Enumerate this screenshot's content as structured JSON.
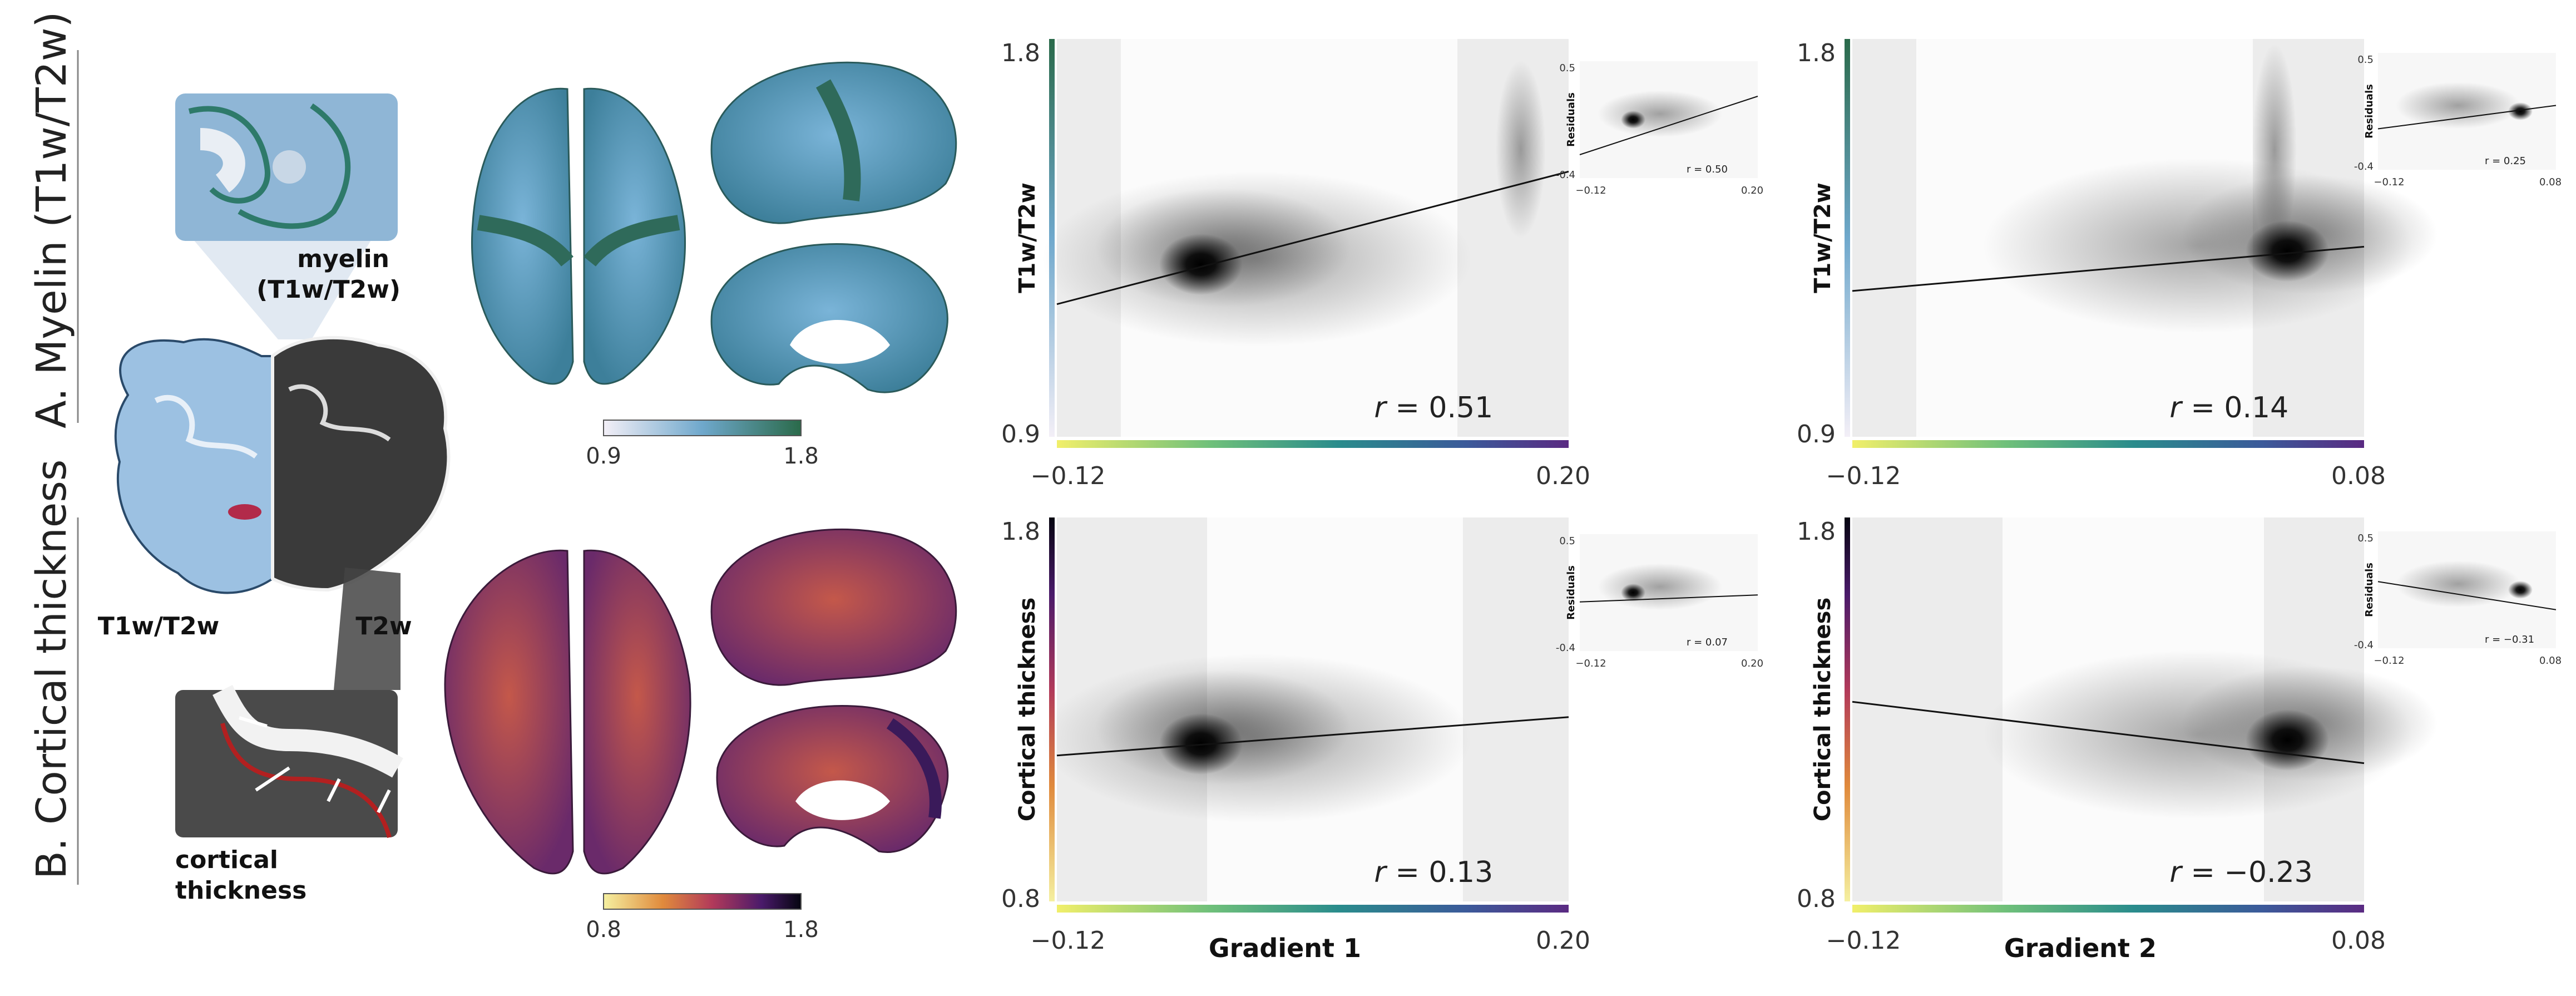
{
  "sections": {
    "a": {
      "letter": "A",
      "title": "Myelin (T1w/T2w)"
    },
    "b": {
      "letter": "B",
      "title": "Cortical thickness"
    }
  },
  "schematic": {
    "myelin_label_1": "myelin",
    "myelin_label_2": "(T1w/T2w)",
    "t1w_label": "T1w/T2w",
    "t2w_label": "T2w",
    "thickness_label_1": "cortical",
    "thickness_label_2": "thickness"
  },
  "colorbars": {
    "myelin": {
      "min": "0.9",
      "max": "1.8",
      "colors": [
        "#f3eff7",
        "#6fa8cc",
        "#2a6a4a"
      ]
    },
    "thickness": {
      "min": "0.8",
      "max": "1.8",
      "colors": [
        "#f5f0a0",
        "#e08a3c",
        "#b23a5a",
        "#4a1a6a",
        "#050510"
      ]
    }
  },
  "colors": {
    "gradient_bar": [
      "#f1ef6a",
      "#6fc07a",
      "#2a8c8c",
      "#3b5a9a",
      "#5a2a82"
    ],
    "myelin_brain": "#5f9fc8",
    "myelin_brain_dark": "#2f6a5a",
    "thickness_brain": "#b24a52",
    "thickness_brain_dark": "#4a2a78"
  },
  "chart_data": [
    {
      "type": "scatter",
      "panel": "A-gradient1",
      "xlabel": "",
      "ylabel": "T1w/T2w",
      "xlim": [
        -0.12,
        0.2
      ],
      "ylim": [
        0.9,
        1.8
      ],
      "x_ticks": [
        "-0.12",
        "0.20"
      ],
      "y_ticks": [
        "0.9",
        "1.8"
      ],
      "r_prefix": "r",
      "r_value": "= 0.51",
      "fit_line": {
        "x": [
          -0.12,
          0.2
        ],
        "y": [
          1.2,
          1.5
        ]
      },
      "density_peak": {
        "x": -0.03,
        "y": 1.29
      },
      "inset": {
        "ylabel": "Residuals",
        "x_ticks": [
          "-0.12",
          "0.20"
        ],
        "y_ticks": [
          "0.5",
          "-0.4"
        ],
        "r": "r = 0.50"
      }
    },
    {
      "type": "scatter",
      "panel": "A-gradient2",
      "xlabel": "",
      "ylabel": "T1w/T2w",
      "xlim": [
        -0.12,
        0.08
      ],
      "ylim": [
        0.9,
        1.8
      ],
      "x_ticks": [
        "-0.12",
        "0.08"
      ],
      "y_ticks": [
        "0.9",
        "1.8"
      ],
      "r_prefix": "r",
      "r_value": "= 0.14",
      "fit_line": {
        "x": [
          -0.12,
          0.08
        ],
        "y": [
          1.23,
          1.33
        ]
      },
      "density_peak": {
        "x": 0.05,
        "y": 1.32
      },
      "inset": {
        "ylabel": "Residuals",
        "x_ticks": [
          "-0.12",
          "0.08"
        ],
        "y_ticks": [
          "0.5",
          "-0.4"
        ],
        "r": "r = 0.25"
      }
    },
    {
      "type": "scatter",
      "panel": "B-gradient1",
      "xlabel": "Gradient 1",
      "ylabel": "Cortical thickness",
      "xlim": [
        -0.12,
        0.2
      ],
      "ylim": [
        0.8,
        1.8
      ],
      "x_ticks": [
        "-0.12",
        "0.20"
      ],
      "y_ticks": [
        "0.8",
        "1.8"
      ],
      "r_prefix": "r",
      "r_value": "= 0.13",
      "fit_line": {
        "x": [
          -0.12,
          0.2
        ],
        "y": [
          1.18,
          1.28
        ]
      },
      "density_peak": {
        "x": -0.03,
        "y": 1.21
      },
      "inset": {
        "ylabel": "Residuals",
        "x_ticks": [
          "-0.12",
          "0.20"
        ],
        "y_ticks": [
          "0.5",
          "-0.4"
        ],
        "r": "r = 0.07"
      }
    },
    {
      "type": "scatter",
      "panel": "B-gradient2",
      "xlabel": "Gradient 2",
      "ylabel": "Cortical thickness",
      "xlim": [
        -0.12,
        0.08
      ],
      "ylim": [
        0.8,
        1.8
      ],
      "x_ticks": [
        "-0.12",
        "0.08"
      ],
      "y_ticks": [
        "0.8",
        "1.8"
      ],
      "r_prefix": "r",
      "r_value": "= −0.23",
      "fit_line": {
        "x": [
          -0.12,
          0.08
        ],
        "y": [
          1.32,
          1.16
        ]
      },
      "density_peak": {
        "x": 0.05,
        "y": 1.22
      },
      "inset": {
        "ylabel": "Residuals",
        "x_ticks": [
          "-0.12",
          "0.08"
        ],
        "y_ticks": [
          "0.5",
          "-0.4"
        ],
        "r": "r = −0.31"
      }
    }
  ]
}
